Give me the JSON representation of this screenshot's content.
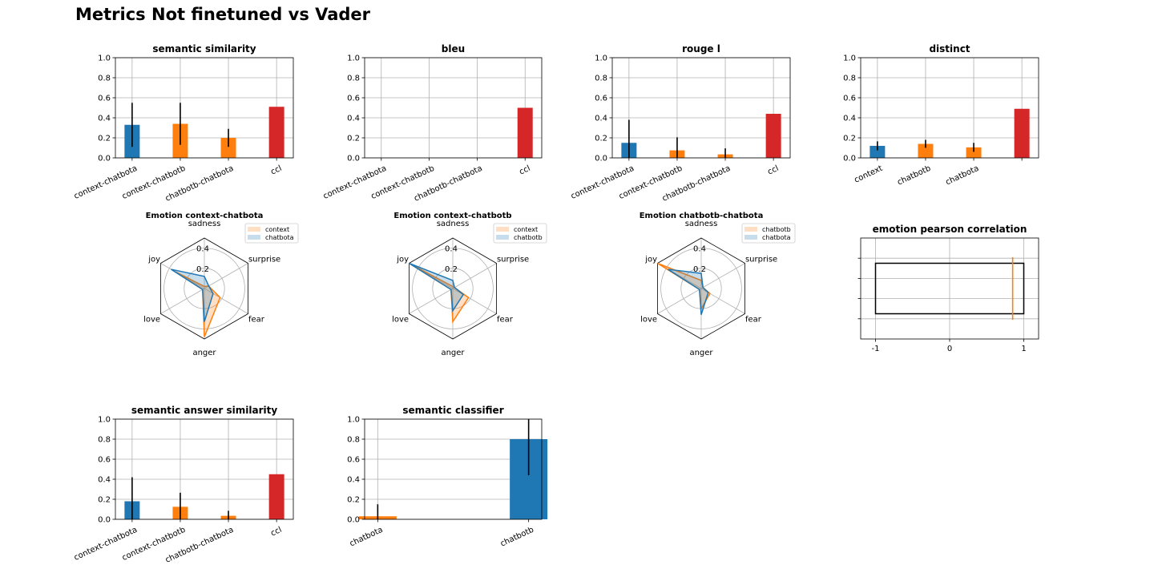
{
  "figure_title": "Metrics Not finetuned vs Vader",
  "colors": {
    "blue": "#1f77b4",
    "orange": "#ff7f0e",
    "red": "#d62728",
    "black": "#000000"
  },
  "chart_data": [
    {
      "id": "semantic-similarity",
      "type": "bar",
      "title": "semantic similarity",
      "categories": [
        "context-chatbota",
        "context-chatbotb",
        "chatbotb-chatbota",
        "ccl"
      ],
      "values": [
        0.33,
        0.34,
        0.2,
        0.51
      ],
      "errors": [
        0.22,
        0.21,
        0.09,
        0
      ],
      "colors": [
        "blue",
        "orange",
        "orange",
        "red"
      ],
      "ylim": [
        0,
        1
      ],
      "yticks": [
        "0.0",
        "0.2",
        "0.4",
        "0.6",
        "0.8",
        "1.0"
      ],
      "grid": true
    },
    {
      "id": "bleu",
      "type": "bar",
      "title": "bleu",
      "categories": [
        "context-chatbota",
        "context-chatbotb",
        "chatbotb-chatbota",
        "ccl"
      ],
      "values": [
        0,
        0,
        0,
        0.5
      ],
      "errors": [
        0,
        0,
        0,
        0
      ],
      "colors": [
        "blue",
        "orange",
        "orange",
        "red"
      ],
      "ylim": [
        0,
        1
      ],
      "yticks": [
        "0.0",
        "0.2",
        "0.4",
        "0.6",
        "0.8",
        "1.0"
      ],
      "grid": true
    },
    {
      "id": "rouge-l",
      "type": "bar",
      "title": "rouge l",
      "categories": [
        "context-chatbota",
        "context-chatbotb",
        "chatbotb-chatbota",
        "ccl"
      ],
      "values": [
        0.15,
        0.075,
        0.035,
        0.44
      ],
      "errors": [
        0.23,
        0.13,
        0.06,
        0
      ],
      "colors": [
        "blue",
        "orange",
        "orange",
        "red"
      ],
      "ylim": [
        0,
        1
      ],
      "yticks": [
        "0.0",
        "0.2",
        "0.4",
        "0.6",
        "0.8",
        "1.0"
      ],
      "grid": true
    },
    {
      "id": "distinct",
      "type": "bar",
      "title": "distinct",
      "categories": [
        "context",
        "chatbotb",
        "chatbota",
        ""
      ],
      "values": [
        0.12,
        0.14,
        0.105,
        0.49
      ],
      "errors": [
        0.045,
        0.04,
        0.045,
        0
      ],
      "colors": [
        "blue",
        "orange",
        "orange",
        "red"
      ],
      "ylim": [
        0,
        1
      ],
      "yticks": [
        "0.0",
        "0.2",
        "0.4",
        "0.6",
        "0.8",
        "1.0"
      ],
      "grid": true
    },
    {
      "id": "emotion-context-chatbota",
      "type": "radar",
      "title": "Emotion context-chatbota",
      "axes": [
        "sadness",
        "surprise",
        "fear",
        "anger",
        "love",
        "joy"
      ],
      "rlabels": [
        "0.2",
        "0.4"
      ],
      "rticks": [
        0.2,
        0.4
      ],
      "rmax": 0.5,
      "series": [
        {
          "name": "context",
          "color": "orange",
          "values": [
            0.02,
            0.05,
            0.18,
            0.48,
            0.02,
            0.33
          ]
        },
        {
          "name": "chatbota",
          "color": "blue",
          "values": [
            0.12,
            0.05,
            0.1,
            0.33,
            0.02,
            0.38
          ]
        }
      ],
      "legend_loc": "upper right"
    },
    {
      "id": "emotion-context-chatbotb",
      "type": "radar",
      "title": "Emotion context-chatbotb",
      "axes": [
        "sadness",
        "surprise",
        "fear",
        "anger",
        "love",
        "joy"
      ],
      "rlabels": [
        "0.2",
        "0.4"
      ],
      "rticks": [
        0.2,
        0.4
      ],
      "rmax": 0.5,
      "series": [
        {
          "name": "context",
          "color": "orange",
          "values": [
            0.02,
            0.02,
            0.18,
            0.33,
            0.02,
            0.5
          ]
        },
        {
          "name": "chatbotb",
          "color": "blue",
          "values": [
            0.08,
            0.02,
            0.12,
            0.22,
            0.02,
            0.5
          ]
        }
      ],
      "legend_loc": "upper right"
    },
    {
      "id": "emotion-chatbotb-chatbota",
      "type": "radar",
      "title": "Emotion chatbotb-chatbota",
      "axes": [
        "sadness",
        "surprise",
        "fear",
        "anger",
        "love",
        "joy"
      ],
      "rlabels": [
        "0.2",
        "0.4"
      ],
      "rticks": [
        0.2,
        0.4
      ],
      "rmax": 0.5,
      "series": [
        {
          "name": "chatbotb",
          "color": "orange",
          "values": [
            0.08,
            0.02,
            0.1,
            0.2,
            0.02,
            0.5
          ]
        },
        {
          "name": "chatbota",
          "color": "blue",
          "values": [
            0.15,
            0.02,
            0.08,
            0.26,
            0.02,
            0.38
          ]
        }
      ],
      "legend_loc": "upper right"
    },
    {
      "id": "emotion-pearson-correlation",
      "type": "box",
      "title": "emotion pearson correlation",
      "xlim": [
        -1.2,
        1.2
      ],
      "xticks": [
        "-1",
        "0",
        "1"
      ],
      "box": {
        "q1": -1,
        "q3": 1,
        "median": 0.85
      },
      "grid": true
    },
    {
      "id": "semantic-answer-similarity",
      "type": "bar",
      "title": "semantic answer similarity",
      "categories": [
        "context-chatbota",
        "context-chatbotb",
        "chatbotb-chatbota",
        "ccl"
      ],
      "values": [
        0.18,
        0.125,
        0.035,
        0.45
      ],
      "errors": [
        0.24,
        0.14,
        0.05,
        0
      ],
      "colors": [
        "blue",
        "orange",
        "orange",
        "red"
      ],
      "ylim": [
        0,
        1
      ],
      "yticks": [
        "0.0",
        "0.2",
        "0.4",
        "0.6",
        "0.8",
        "1.0"
      ],
      "grid": true
    },
    {
      "id": "semantic-classifier",
      "type": "bar",
      "title": "semantic classifier",
      "categories": [
        "chatbota",
        "chatbotb"
      ],
      "values": [
        0.03,
        0.8
      ],
      "errors": [
        0.12,
        0.36
      ],
      "colors": [
        "orange",
        "blue"
      ],
      "ylim": [
        0,
        1
      ],
      "yticks": [
        "0.0",
        "0.2",
        "0.4",
        "0.6",
        "0.8",
        "1.0"
      ],
      "grid": true
    }
  ]
}
